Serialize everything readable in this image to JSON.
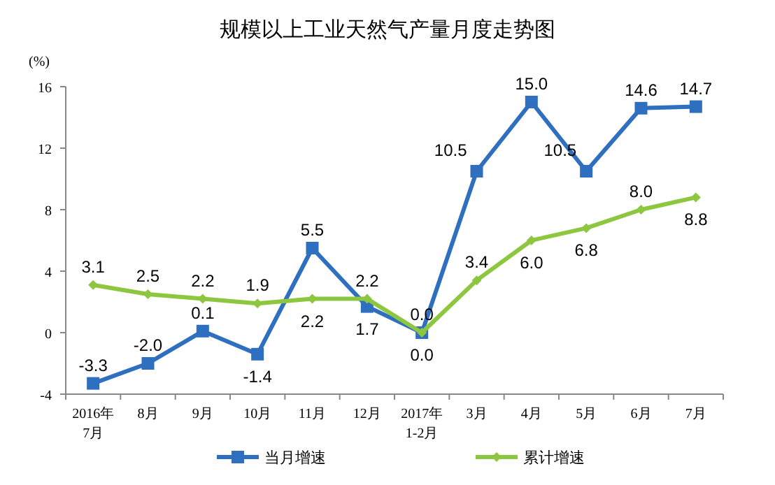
{
  "chart_data": {
    "type": "line",
    "title": "规模以上工业天然气产量月度走势图",
    "ylabel": "(%)",
    "categories": [
      "2016年\n7月",
      "8月",
      "9月",
      "10月",
      "11月",
      "12月",
      "2017年\n1-2月",
      "3月",
      "4月",
      "5月",
      "6月",
      "7月"
    ],
    "series": [
      {
        "name": "当月增速",
        "color": "#2e6fc0",
        "marker": "square",
        "values": [
          -3.3,
          -2.0,
          0.1,
          -1.4,
          5.5,
          1.7,
          0.0,
          10.5,
          15.0,
          10.5,
          14.6,
          14.7
        ],
        "value_labels": [
          "-3.3",
          "-2.0",
          "0.1",
          "-1.4",
          "5.5",
          "1.7",
          "0.0",
          "10.5",
          "15.0",
          "10.5",
          "14.6",
          "14.7"
        ]
      },
      {
        "name": "累计增速",
        "color": "#8dc63f",
        "marker": "diamond",
        "values": [
          3.1,
          2.5,
          2.2,
          1.9,
          2.2,
          2.2,
          0.0,
          3.4,
          6.0,
          6.8,
          8.0,
          8.8
        ],
        "value_labels": [
          "3.1",
          "2.5",
          "2.2",
          "1.9",
          "2.2",
          "2.2",
          "0.0",
          "3.4",
          "6.0",
          "6.8",
          "8.0",
          "8.8"
        ]
      }
    ],
    "ylim": [
      -4,
      16
    ],
    "yticks": [
      -4,
      0,
      4,
      8,
      12,
      16
    ],
    "legend": "bottom",
    "line_style": "solid"
  }
}
